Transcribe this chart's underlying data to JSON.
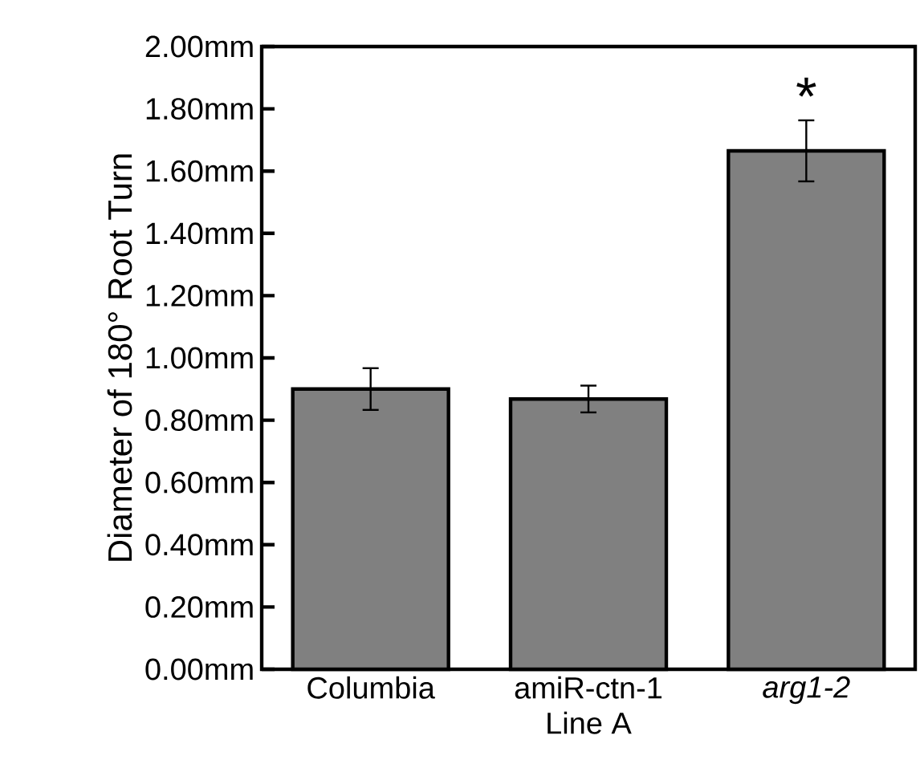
{
  "chart_data": {
    "type": "bar",
    "ylabel": "Diameter of 180° Root Turn",
    "categories": [
      "Columbia",
      "amiR-ctn-1\nLine A",
      "*arg1-2*"
    ],
    "values": [
      0.9,
      0.868,
      1.665
    ],
    "errors": [
      0.067,
      0.043,
      0.098
    ],
    "color": "#808080",
    "ylim": [
      0,
      2
    ],
    "yticks": [
      {
        "value": 0,
        "label": "0.00mm"
      },
      {
        "value": 0.2,
        "label": "0.20mm"
      },
      {
        "value": 0.4,
        "label": "0.40mm"
      },
      {
        "value": 0.6,
        "label": "0.60mm"
      },
      {
        "value": 0.8,
        "label": "0.80mm"
      },
      {
        "value": 1.0,
        "label": "1.00mm"
      },
      {
        "value": 1.2,
        "label": "1.20mm"
      },
      {
        "value": 1.4,
        "label": "1.40mm"
      },
      {
        "value": 1.6,
        "label": "1.60mm"
      },
      {
        "value": 1.8,
        "label": "1.80mm"
      },
      {
        "value": 2.0,
        "label": "2.00mm"
      }
    ],
    "annotations": [
      "*"
    ]
  }
}
